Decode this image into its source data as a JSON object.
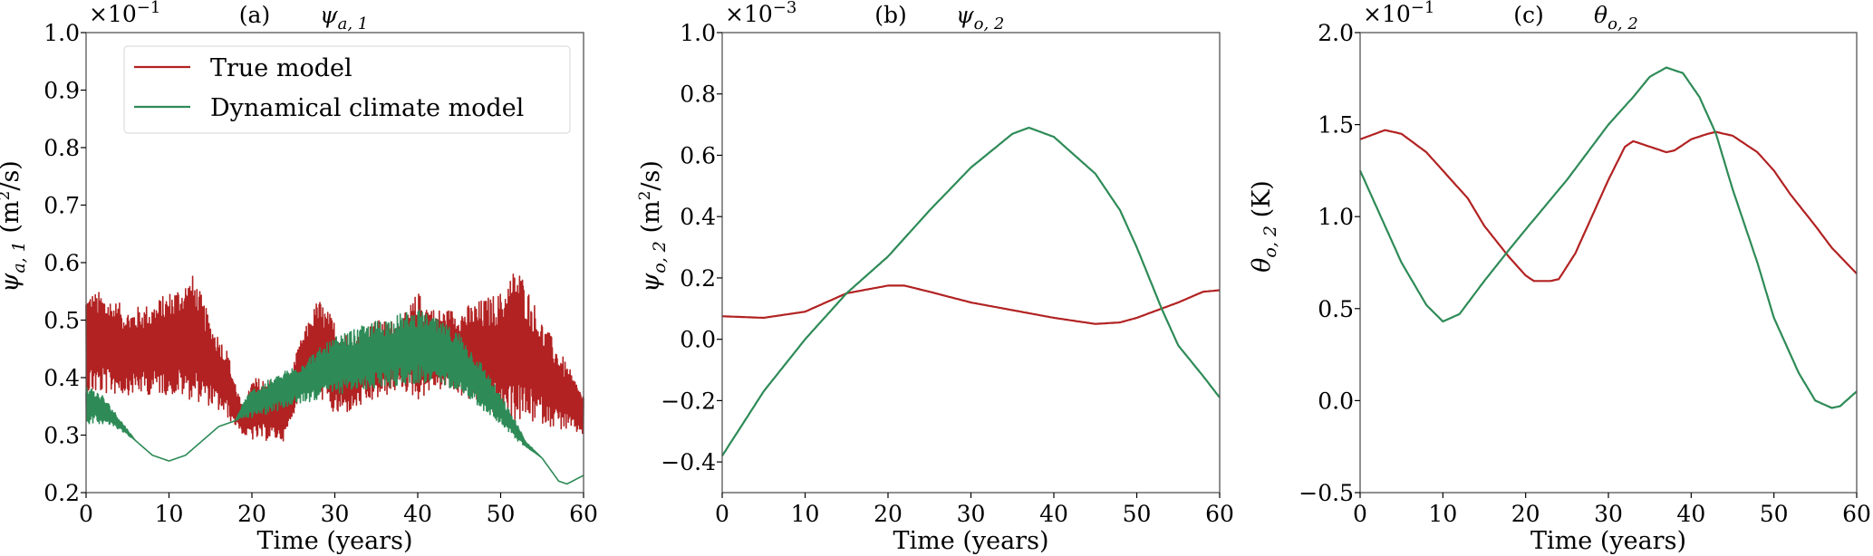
{
  "chart_data": [
    {
      "type": "line",
      "panel": "(a)",
      "title": {
        "base": "ψ",
        "sub": "a, 1"
      },
      "multiplier": {
        "base": "×10",
        "exp": "−1"
      },
      "xlabel": "Time (years)",
      "ylabel": {
        "base": "ψ",
        "sub": "a, 1",
        "unit_pre": " (m",
        "unit_sup": "2",
        "unit_post": "/s)"
      },
      "xlim": [
        0,
        60
      ],
      "ylim": [
        0.2,
        1.0
      ],
      "xticks": [
        0,
        10,
        20,
        30,
        40,
        50,
        60
      ],
      "yticks": [
        0.2,
        0.3,
        0.4,
        0.5,
        0.6,
        0.7,
        0.8,
        0.9,
        1.0
      ],
      "ytick_labels": [
        "0.2",
        "0.3",
        "0.4",
        "0.5",
        "0.6",
        "0.7",
        "0.8",
        "0.9",
        "1.0"
      ],
      "legend": {
        "placement": "top",
        "entries": [
          "True model",
          "Dynamical climate model"
        ]
      },
      "series": [
        {
          "name": "True model",
          "color": "#b22222",
          "noisy": true,
          "x": [
            0,
            2,
            5,
            8,
            10,
            13,
            15,
            17,
            19,
            20,
            22,
            24,
            26,
            28,
            30,
            32,
            35,
            38,
            40,
            42,
            45,
            50,
            52,
            55,
            57,
            60
          ],
          "upper": [
            0.55,
            0.55,
            0.52,
            0.53,
            0.55,
            0.58,
            0.5,
            0.45,
            0.34,
            0.4,
            0.4,
            0.38,
            0.47,
            0.54,
            0.5,
            0.47,
            0.5,
            0.5,
            0.55,
            0.52,
            0.52,
            0.55,
            0.6,
            0.5,
            0.45,
            0.37
          ],
          "lower": [
            0.37,
            0.37,
            0.37,
            0.37,
            0.37,
            0.36,
            0.35,
            0.33,
            0.3,
            0.29,
            0.29,
            0.29,
            0.38,
            0.37,
            0.33,
            0.34,
            0.36,
            0.38,
            0.36,
            0.38,
            0.37,
            0.33,
            0.32,
            0.32,
            0.31,
            0.3
          ]
        },
        {
          "name": "Dynamical climate model",
          "color": "#2e8b57",
          "noisy": true,
          "x": [
            0,
            2,
            4,
            6,
            8,
            10,
            12,
            14,
            16,
            18,
            19,
            20,
            25,
            30,
            35,
            40,
            45,
            48,
            50,
            52,
            53,
            55,
            57,
            58,
            60
          ],
          "upper": [
            0.39,
            0.37,
            0.33,
            0.29,
            0.265,
            0.255,
            0.265,
            0.29,
            0.315,
            0.325,
            0.36,
            0.38,
            0.42,
            0.47,
            0.5,
            0.52,
            0.48,
            0.42,
            0.37,
            0.32,
            0.29,
            0.26,
            0.22,
            0.215,
            0.23
          ],
          "lower": [
            0.32,
            0.32,
            0.31,
            0.29,
            0.265,
            0.255,
            0.265,
            0.29,
            0.315,
            0.325,
            0.33,
            0.33,
            0.35,
            0.37,
            0.38,
            0.39,
            0.38,
            0.34,
            0.32,
            0.29,
            0.28,
            0.26,
            0.22,
            0.215,
            0.23
          ]
        }
      ]
    },
    {
      "type": "line",
      "panel": "(b)",
      "title": {
        "base": "ψ",
        "sub": "o, 2"
      },
      "multiplier": {
        "base": "×10",
        "exp": "−3"
      },
      "xlabel": "Time (years)",
      "ylabel": {
        "base": "ψ",
        "sub": "o, 2",
        "unit_pre": " (m",
        "unit_sup": "2",
        "unit_post": "/s)"
      },
      "xlim": [
        0,
        60
      ],
      "ylim": [
        -0.5,
        1.0
      ],
      "xticks": [
        0,
        10,
        20,
        30,
        40,
        50,
        60
      ],
      "yticks": [
        -0.4,
        -0.2,
        0.0,
        0.2,
        0.4,
        0.6,
        0.8,
        1.0
      ],
      "ytick_labels": [
        "−0.4",
        "−0.2",
        "0.0",
        "0.2",
        "0.4",
        "0.6",
        "0.8",
        "1.0"
      ],
      "series": [
        {
          "name": "True model",
          "color": "#b22222",
          "x": [
            0,
            5,
            10,
            15,
            20,
            22,
            25,
            30,
            35,
            40,
            45,
            48,
            50,
            55,
            58,
            60
          ],
          "y": [
            0.075,
            0.07,
            0.09,
            0.15,
            0.175,
            0.175,
            0.155,
            0.12,
            0.095,
            0.07,
            0.05,
            0.055,
            0.07,
            0.12,
            0.155,
            0.16
          ]
        },
        {
          "name": "Dynamical climate model",
          "color": "#2e8b57",
          "x": [
            0,
            5,
            10,
            15,
            20,
            25,
            30,
            35,
            37,
            40,
            45,
            48,
            50,
            53,
            55,
            58,
            60
          ],
          "y": [
            -0.38,
            -0.17,
            0.0,
            0.15,
            0.27,
            0.42,
            0.56,
            0.67,
            0.69,
            0.66,
            0.54,
            0.42,
            0.3,
            0.1,
            -0.02,
            -0.12,
            -0.19
          ]
        }
      ]
    },
    {
      "type": "line",
      "panel": "(c)",
      "title": {
        "base": "θ",
        "sub": "o, 2"
      },
      "multiplier": {
        "base": "×10",
        "exp": "−1"
      },
      "xlabel": "Time (years)",
      "ylabel": {
        "base": "θ",
        "sub": "o, 2",
        "unit_pre": " (K)",
        "unit_sup": "",
        "unit_post": ""
      },
      "xlim": [
        0,
        60
      ],
      "ylim": [
        -0.5,
        2.0
      ],
      "xticks": [
        0,
        10,
        20,
        30,
        40,
        50,
        60
      ],
      "yticks": [
        -0.5,
        0.0,
        0.5,
        1.0,
        1.5,
        2.0
      ],
      "ytick_labels": [
        "−0.5",
        "0.0",
        "0.5",
        "1.0",
        "1.5",
        "2.0"
      ],
      "series": [
        {
          "name": "True model",
          "color": "#b22222",
          "x": [
            0,
            3,
            5,
            8,
            10,
            13,
            15,
            18,
            20,
            21,
            23,
            24,
            26,
            28,
            30,
            32,
            33,
            35,
            37,
            38,
            40,
            42,
            43,
            45,
            48,
            50,
            52,
            55,
            57,
            60
          ],
          "y": [
            1.42,
            1.47,
            1.45,
            1.35,
            1.25,
            1.1,
            0.95,
            0.78,
            0.68,
            0.65,
            0.65,
            0.66,
            0.8,
            1.0,
            1.2,
            1.38,
            1.41,
            1.38,
            1.35,
            1.36,
            1.42,
            1.45,
            1.46,
            1.44,
            1.35,
            1.25,
            1.12,
            0.95,
            0.83,
            0.69
          ]
        },
        {
          "name": "Dynamical climate model",
          "color": "#2e8b57",
          "x": [
            0,
            3,
            5,
            8,
            10,
            12,
            15,
            18,
            20,
            25,
            30,
            33,
            35,
            37,
            39,
            41,
            43,
            45,
            48,
            50,
            53,
            55,
            57,
            58,
            60
          ],
          "y": [
            1.25,
            0.95,
            0.75,
            0.52,
            0.43,
            0.47,
            0.65,
            0.82,
            0.93,
            1.2,
            1.5,
            1.65,
            1.76,
            1.81,
            1.78,
            1.65,
            1.45,
            1.15,
            0.75,
            0.45,
            0.15,
            0.0,
            -0.04,
            -0.03,
            0.05
          ]
        }
      ]
    }
  ]
}
